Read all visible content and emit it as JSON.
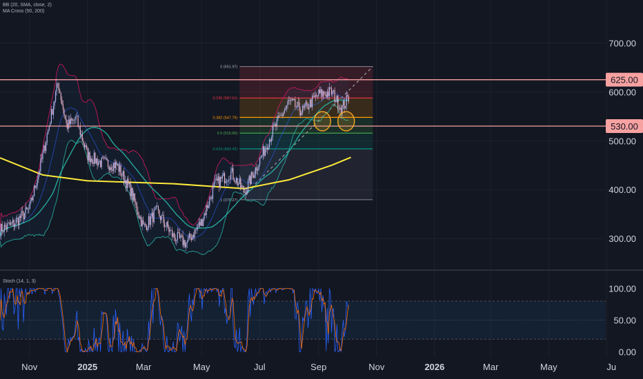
{
  "indicators": {
    "bb_label": "BB (20, SMA, close, 2)",
    "ma_label": "MA Cross (50, 200)",
    "stoch_label": "Stoch (14, 1, 3)"
  },
  "colors": {
    "background": "#131722",
    "grid": "#1e222d",
    "candle_up": "#b2b5f0",
    "candle_down": "#e8b2c8",
    "bb_upper": "#c2185b",
    "bb_lower": "#26a69a",
    "bb_basis": "#2962ff",
    "ma50": "#26a69a",
    "ma200": "#ffeb3b",
    "resistance": "#f7a1a1",
    "stoch_k": "#2962ff",
    "stoch_d": "#ff6d00",
    "fib_0": "#787b86",
    "fib_236": "#f23645",
    "fib_382": "#ff9800",
    "fib_5": "#4caf50",
    "fib_618": "#089981",
    "highlight_circle": "#f5a623"
  },
  "chart_data": [
    {
      "type": "candlestick",
      "panel": "price",
      "x_range": [
        "2024-10-01",
        "2026-06-30"
      ],
      "x_ticks": [
        {
          "date": "2024-11-01",
          "label": "Nov",
          "bold": false
        },
        {
          "date": "2025-01-01",
          "label": "2025",
          "bold": true
        },
        {
          "date": "2025-03-01",
          "label": "Mar",
          "bold": false
        },
        {
          "date": "2025-05-01",
          "label": "May",
          "bold": false
        },
        {
          "date": "2025-07-01",
          "label": "Jul",
          "bold": false
        },
        {
          "date": "2025-09-01",
          "label": "Sep",
          "bold": false
        },
        {
          "date": "2025-11-01",
          "label": "Nov",
          "bold": false
        },
        {
          "date": "2026-01-01",
          "label": "2026",
          "bold": true
        },
        {
          "date": "2026-03-01",
          "label": "Mar",
          "bold": false
        },
        {
          "date": "2026-05-01",
          "label": "May",
          "bold": false
        },
        {
          "date": "2026-07-01",
          "label": "Ju",
          "bold": false
        }
      ],
      "y_ticks": [
        "300.00",
        "400.00",
        "500.00",
        "600.00",
        "700.00"
      ],
      "ylim": [
        252,
        760
      ],
      "horizontal_levels": [
        {
          "value": 625,
          "label": "625.00"
        },
        {
          "value": 530,
          "label": "530.00"
        }
      ],
      "fibonacci": {
        "start_date": "2025-06-10",
        "end_date": "2025-10-28",
        "levels": [
          {
            "ratio": "0",
            "value": 651.97,
            "label": "0 (651.97)"
          },
          {
            "ratio": "0.236",
            "value": 587.61,
            "label": "0.236 (587.61)"
          },
          {
            "ratio": "0.382",
            "value": 547.79,
            "label": "0.382 (547.79)"
          },
          {
            "ratio": "0.5",
            "value": 515.6,
            "label": "0.5 (515.60)"
          },
          {
            "ratio": "0.618",
            "value": 483.42,
            "label": "0.618 (483.42)"
          },
          {
            "ratio": "1",
            "value": 379.27,
            "label": "1 (379.27)"
          }
        ]
      },
      "candle_samples": [
        {
          "date": "2024-10-01",
          "value": 318
        },
        {
          "date": "2024-10-15",
          "value": 330
        },
        {
          "date": "2024-11-01",
          "value": 360
        },
        {
          "date": "2024-11-15",
          "value": 470
        },
        {
          "date": "2024-12-01",
          "value": 620
        },
        {
          "date": "2024-12-10",
          "value": 530
        },
        {
          "date": "2024-12-20",
          "value": 545
        },
        {
          "date": "2025-01-01",
          "value": 470
        },
        {
          "date": "2025-01-15",
          "value": 455
        },
        {
          "date": "2025-02-01",
          "value": 450
        },
        {
          "date": "2025-02-15",
          "value": 400
        },
        {
          "date": "2025-03-01",
          "value": 322
        },
        {
          "date": "2025-03-15",
          "value": 355
        },
        {
          "date": "2025-04-01",
          "value": 305
        },
        {
          "date": "2025-04-15",
          "value": 290
        },
        {
          "date": "2025-05-01",
          "value": 335
        },
        {
          "date": "2025-05-15",
          "value": 410
        },
        {
          "date": "2025-06-01",
          "value": 435
        },
        {
          "date": "2025-06-15",
          "value": 395
        },
        {
          "date": "2025-07-01",
          "value": 460
        },
        {
          "date": "2025-07-15",
          "value": 520
        },
        {
          "date": "2025-08-01",
          "value": 580
        },
        {
          "date": "2025-08-15",
          "value": 560
        },
        {
          "date": "2025-09-01",
          "value": 595
        },
        {
          "date": "2025-09-15",
          "value": 600
        },
        {
          "date": "2025-09-25",
          "value": 565
        },
        {
          "date": "2025-10-03",
          "value": 590
        }
      ],
      "ma200_samples": [
        {
          "date": "2024-10-01",
          "value": 465
        },
        {
          "date": "2024-11-15",
          "value": 430
        },
        {
          "date": "2025-01-01",
          "value": 418
        },
        {
          "date": "2025-04-01",
          "value": 412
        },
        {
          "date": "2025-06-15",
          "value": 402
        },
        {
          "date": "2025-08-01",
          "value": 420
        },
        {
          "date": "2025-09-15",
          "value": 450
        },
        {
          "date": "2025-10-05",
          "value": 466
        }
      ]
    },
    {
      "type": "line",
      "panel": "oscillator",
      "x_range": [
        "2024-10-01",
        "2026-06-30"
      ],
      "y_ticks": [
        "0.00",
        "50.00",
        "100.00"
      ],
      "ylim": [
        -8,
        118
      ],
      "bands": [
        20,
        50,
        80
      ],
      "series": []
    }
  ]
}
